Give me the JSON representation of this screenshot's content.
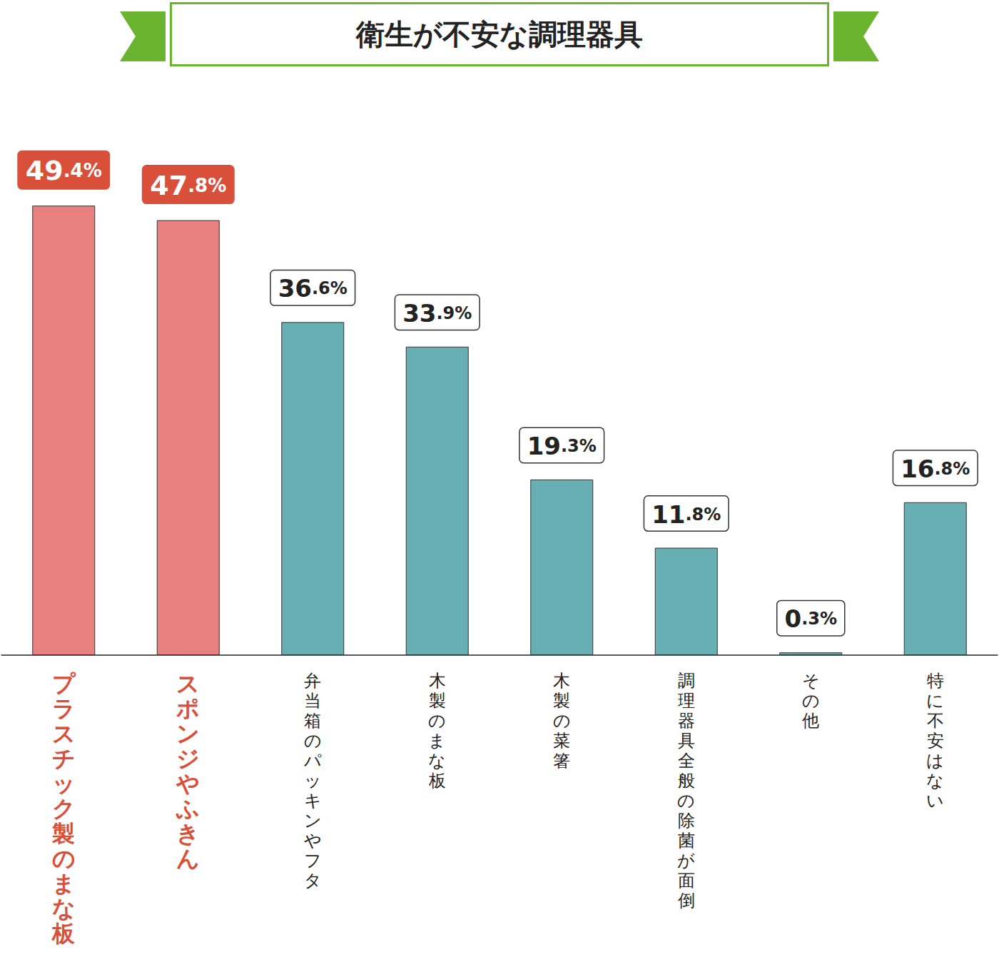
{
  "chart_data": {
    "type": "bar",
    "title": "衛生が不安な調理器具",
    "categories": [
      "プラスチック製のまな板",
      "スポンジやふきん",
      "弁当箱のパッキンやフタ",
      "木製のまな板",
      "木製の菜箸",
      "調理器具全般の除菌が面倒",
      "その他",
      "特に不安はない"
    ],
    "values": [
      49.4,
      47.8,
      36.6,
      33.9,
      19.3,
      11.8,
      0.3,
      16.8
    ],
    "value_labels": [
      "49.4%",
      "47.8%",
      "36.6%",
      "33.9%",
      "19.3%",
      "11.8%",
      "0.3%",
      "16.8%"
    ],
    "colors": [
      "#e88080",
      "#e88080",
      "#67afb3",
      "#67afb3",
      "#67afb3",
      "#67afb3",
      "#67afb3",
      "#67afb3"
    ],
    "ylim": [
      0,
      60
    ],
    "yticks": [
      0,
      60
    ],
    "grid": false,
    "data_labels": true,
    "tick_labels": "x"
  }
}
